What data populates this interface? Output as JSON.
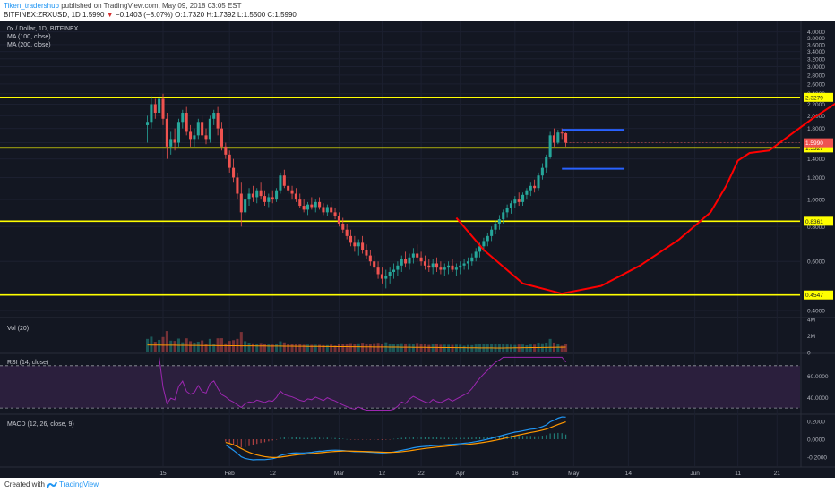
{
  "header": {
    "author": "Tiken_tradershub",
    "published": "published on TradingView.com, May 09, 2018 03:05 EST",
    "symbol": "BITFINEX:ZRXUSD, 1D",
    "last": "1.5990",
    "change": "−0.1403 (−8.07%)",
    "o_label": "O:",
    "o": "1.7320",
    "h_label": "H:",
    "h": "1.7392",
    "l_label": "L:",
    "l": "1.5500",
    "c_label": "C:",
    "c": "1.5990"
  },
  "legend": {
    "title": "0x / Dollar, 1D, BITFINEX",
    "ma100": "MA (100, close)",
    "ma200": "MA (200, close)",
    "vol": "Vol (20)",
    "rsi": "RSI (14, close)",
    "macd": "MACD (12, 26, close, 9)"
  },
  "footer": {
    "created": "Created with",
    "brand": "TradingView"
  },
  "colors": {
    "background": "#131722",
    "up": "#26a69a",
    "down": "#ef5350",
    "support": "#ffff00",
    "annotation_red": "#ff0000",
    "range_blue": "#2962ff",
    "rsi_fill": "#2b1f3d",
    "rsi_line": "#9c27b0",
    "macd_line": "#2196f3",
    "signal_line": "#ff9800"
  },
  "chart_data": [
    {
      "type": "candlestick",
      "title": "0x / Dollar, 1D, BITFINEX",
      "y_axis": {
        "scale": "log",
        "ticks": [
          "4.0000",
          "3.8000",
          "3.6000",
          "3.4000",
          "3.2000",
          "3.0000",
          "2.8000",
          "2.6000",
          "2.4000",
          "2.2000",
          "2.0000",
          "1.8000",
          "1.6000",
          "1.4000",
          "1.2000",
          "1.0000",
          "0.8000",
          "0.6000",
          "0.4000"
        ],
        "ylim": [
          0.38,
          4.2
        ]
      },
      "x_axis": {
        "ticks": [
          "15",
          "Feb",
          "12",
          "Mar",
          "12",
          "22",
          "Apr",
          "16",
          "May",
          "14",
          "Jun",
          "11",
          "21"
        ],
        "tick_day_index": [
          0,
          17,
          28,
          45,
          56,
          66,
          76,
          90,
          105,
          119,
          136,
          147,
          157
        ],
        "n_days": 160
      },
      "horizontal_levels": [
        {
          "value": 2.3279,
          "label": "2.3279",
          "color": "#ffff00"
        },
        {
          "value": 1.5327,
          "label": "1.5327",
          "color": "#ffff00"
        },
        {
          "value": 0.8361,
          "label": "0.8361",
          "color": "#ffff00"
        },
        {
          "value": 0.4547,
          "label": "0.4547",
          "color": "#ffff00"
        }
      ],
      "last_price_label": {
        "value": 1.599,
        "label": "1.5990",
        "color": "#ef5350"
      },
      "range_box": {
        "top": 1.78,
        "bottom": 1.29,
        "start_day": 102,
        "end_day": 118,
        "color": "#2962ff"
      },
      "annotation_path": [
        [
          75,
          0.86
        ],
        [
          82,
          0.66
        ],
        [
          92,
          0.5
        ],
        [
          102,
          0.46
        ],
        [
          112,
          0.49
        ],
        [
          122,
          0.58
        ],
        [
          132,
          0.72
        ],
        [
          140,
          0.9
        ],
        [
          144,
          1.12
        ],
        [
          147,
          1.38
        ],
        [
          150,
          1.47
        ],
        [
          155,
          1.5
        ],
        [
          166,
          1.95
        ],
        [
          175,
          2.36
        ]
      ],
      "ohlc": [
        [
          -4,
          1.85,
          2.0,
          1.6,
          1.9
        ],
        [
          -3,
          1.9,
          2.35,
          1.8,
          2.2
        ],
        [
          -2,
          2.2,
          2.3,
          1.95,
          2.05
        ],
        [
          -1,
          2.05,
          2.45,
          2.0,
          2.3
        ],
        [
          0,
          2.3,
          2.4,
          1.85,
          1.95
        ],
        [
          1,
          1.95,
          2.05,
          1.4,
          1.55
        ],
        [
          2,
          1.55,
          1.75,
          1.45,
          1.65
        ],
        [
          3,
          1.65,
          1.8,
          1.5,
          1.6
        ],
        [
          4,
          1.6,
          1.95,
          1.55,
          1.9
        ],
        [
          5,
          1.9,
          2.1,
          1.8,
          2.05
        ],
        [
          6,
          2.05,
          2.15,
          1.7,
          1.75
        ],
        [
          7,
          1.75,
          1.85,
          1.55,
          1.65
        ],
        [
          8,
          1.65,
          1.8,
          1.55,
          1.7
        ],
        [
          9,
          1.7,
          1.95,
          1.65,
          1.9
        ],
        [
          10,
          1.9,
          2.0,
          1.65,
          1.7
        ],
        [
          11,
          1.7,
          1.8,
          1.58,
          1.65
        ],
        [
          12,
          1.65,
          2.0,
          1.6,
          1.95
        ],
        [
          13,
          1.95,
          2.1,
          1.85,
          2.05
        ],
        [
          14,
          2.05,
          2.15,
          1.7,
          1.8
        ],
        [
          15,
          1.8,
          1.9,
          1.5,
          1.55
        ],
        [
          16,
          1.55,
          1.6,
          1.4,
          1.45
        ],
        [
          17,
          1.45,
          1.5,
          1.25,
          1.3
        ],
        [
          18,
          1.3,
          1.4,
          1.15,
          1.2
        ],
        [
          19,
          1.2,
          1.25,
          1.0,
          1.05
        ],
        [
          20,
          1.05,
          1.15,
          0.8,
          0.9
        ],
        [
          21,
          0.9,
          1.05,
          0.88,
          1.0
        ],
        [
          22,
          1.0,
          1.1,
          0.95,
          1.05
        ],
        [
          23,
          1.05,
          1.12,
          0.98,
          1.02
        ],
        [
          24,
          1.02,
          1.1,
          0.97,
          1.08
        ],
        [
          25,
          1.08,
          1.15,
          1.0,
          1.03
        ],
        [
          26,
          1.03,
          1.08,
          0.95,
          0.98
        ],
        [
          27,
          0.98,
          1.05,
          0.94,
          1.02
        ],
        [
          28,
          1.02,
          1.08,
          0.97,
          1.0
        ],
        [
          29,
          1.0,
          1.1,
          0.98,
          1.08
        ],
        [
          30,
          1.08,
          1.25,
          1.05,
          1.22
        ],
        [
          31,
          1.22,
          1.28,
          1.1,
          1.12
        ],
        [
          32,
          1.12,
          1.18,
          1.05,
          1.08
        ],
        [
          33,
          1.08,
          1.12,
          1.0,
          1.05
        ],
        [
          34,
          1.05,
          1.1,
          0.98,
          1.0
        ],
        [
          35,
          1.0,
          1.05,
          0.93,
          0.95
        ],
        [
          36,
          0.95,
          1.0,
          0.9,
          0.92
        ],
        [
          37,
          0.92,
          0.98,
          0.88,
          0.96
        ],
        [
          38,
          0.96,
          1.02,
          0.92,
          0.94
        ],
        [
          39,
          0.94,
          1.0,
          0.9,
          0.98
        ],
        [
          40,
          0.98,
          1.02,
          0.92,
          0.94
        ],
        [
          41,
          0.94,
          0.97,
          0.88,
          0.9
        ],
        [
          42,
          0.9,
          0.96,
          0.87,
          0.94
        ],
        [
          43,
          0.94,
          0.98,
          0.88,
          0.9
        ],
        [
          44,
          0.9,
          0.93,
          0.85,
          0.87
        ],
        [
          45,
          0.87,
          0.9,
          0.8,
          0.82
        ],
        [
          46,
          0.82,
          0.86,
          0.76,
          0.78
        ],
        [
          47,
          0.78,
          0.82,
          0.72,
          0.74
        ],
        [
          48,
          0.74,
          0.78,
          0.68,
          0.7
        ],
        [
          49,
          0.7,
          0.74,
          0.65,
          0.68
        ],
        [
          50,
          0.68,
          0.72,
          0.63,
          0.7
        ],
        [
          51,
          0.7,
          0.74,
          0.64,
          0.66
        ],
        [
          52,
          0.66,
          0.69,
          0.61,
          0.63
        ],
        [
          53,
          0.63,
          0.66,
          0.58,
          0.6
        ],
        [
          54,
          0.6,
          0.63,
          0.55,
          0.57
        ],
        [
          55,
          0.57,
          0.6,
          0.52,
          0.54
        ],
        [
          56,
          0.54,
          0.57,
          0.5,
          0.52
        ],
        [
          57,
          0.52,
          0.56,
          0.48,
          0.53
        ],
        [
          58,
          0.53,
          0.57,
          0.5,
          0.55
        ],
        [
          59,
          0.55,
          0.59,
          0.52,
          0.56
        ],
        [
          60,
          0.56,
          0.6,
          0.53,
          0.58
        ],
        [
          61,
          0.58,
          0.63,
          0.55,
          0.61
        ],
        [
          62,
          0.61,
          0.65,
          0.57,
          0.59
        ],
        [
          63,
          0.59,
          0.64,
          0.56,
          0.62
        ],
        [
          64,
          0.62,
          0.67,
          0.59,
          0.64
        ],
        [
          65,
          0.64,
          0.69,
          0.6,
          0.62
        ],
        [
          66,
          0.62,
          0.65,
          0.58,
          0.6
        ],
        [
          67,
          0.6,
          0.63,
          0.56,
          0.58
        ],
        [
          68,
          0.58,
          0.61,
          0.55,
          0.57
        ],
        [
          69,
          0.57,
          0.61,
          0.54,
          0.59
        ],
        [
          70,
          0.59,
          0.62,
          0.55,
          0.57
        ],
        [
          71,
          0.57,
          0.6,
          0.54,
          0.56
        ],
        [
          72,
          0.56,
          0.59,
          0.53,
          0.57
        ],
        [
          73,
          0.57,
          0.6,
          0.54,
          0.58
        ],
        [
          74,
          0.58,
          0.61,
          0.55,
          0.56
        ],
        [
          75,
          0.56,
          0.59,
          0.53,
          0.57
        ],
        [
          76,
          0.57,
          0.6,
          0.54,
          0.58
        ],
        [
          77,
          0.58,
          0.61,
          0.56,
          0.59
        ],
        [
          78,
          0.59,
          0.62,
          0.56,
          0.6
        ],
        [
          79,
          0.6,
          0.64,
          0.58,
          0.62
        ],
        [
          80,
          0.62,
          0.67,
          0.6,
          0.65
        ],
        [
          81,
          0.65,
          0.7,
          0.62,
          0.68
        ],
        [
          82,
          0.68,
          0.73,
          0.65,
          0.71
        ],
        [
          83,
          0.71,
          0.76,
          0.68,
          0.74
        ],
        [
          84,
          0.74,
          0.8,
          0.71,
          0.78
        ],
        [
          85,
          0.78,
          0.84,
          0.75,
          0.82
        ],
        [
          86,
          0.82,
          0.88,
          0.78,
          0.85
        ],
        [
          87,
          0.85,
          0.92,
          0.82,
          0.9
        ],
        [
          88,
          0.9,
          0.96,
          0.86,
          0.93
        ],
        [
          89,
          0.93,
          0.99,
          0.89,
          0.97
        ],
        [
          90,
          0.97,
          1.03,
          0.93,
          1.0
        ],
        [
          91,
          1.0,
          1.06,
          0.95,
          0.98
        ],
        [
          92,
          0.98,
          1.06,
          0.95,
          1.04
        ],
        [
          93,
          1.04,
          1.1,
          1.0,
          1.08
        ],
        [
          94,
          1.08,
          1.15,
          1.03,
          1.12
        ],
        [
          95,
          1.12,
          1.18,
          1.06,
          1.1
        ],
        [
          96,
          1.1,
          1.25,
          1.08,
          1.22
        ],
        [
          97,
          1.22,
          1.35,
          1.18,
          1.3
        ],
        [
          98,
          1.3,
          1.45,
          1.25,
          1.42
        ],
        [
          99,
          1.42,
          1.75,
          1.4,
          1.7
        ],
        [
          100,
          1.7,
          1.8,
          1.55,
          1.6
        ],
        [
          101,
          1.6,
          1.78,
          1.58,
          1.74
        ],
        [
          102,
          1.74,
          1.8,
          1.65,
          1.73
        ],
        [
          103,
          1.73,
          1.74,
          1.55,
          1.6
        ]
      ]
    },
    {
      "type": "bar",
      "title": "Vol (20)",
      "y_ticks": [
        "4M",
        "2M",
        "0"
      ],
      "ylim": [
        0,
        4
      ]
    },
    {
      "type": "line",
      "title": "RSI (14, close)",
      "y_ticks": [
        "60.0000",
        "40.0000"
      ],
      "bands": [
        30,
        70
      ],
      "ylim": [
        25,
        80
      ]
    },
    {
      "type": "line",
      "title": "MACD (12, 26, close, 9)",
      "y_ticks": [
        "0.2000",
        "0.0000",
        "-0.2000"
      ],
      "ylim": [
        -0.28,
        0.26
      ]
    }
  ]
}
